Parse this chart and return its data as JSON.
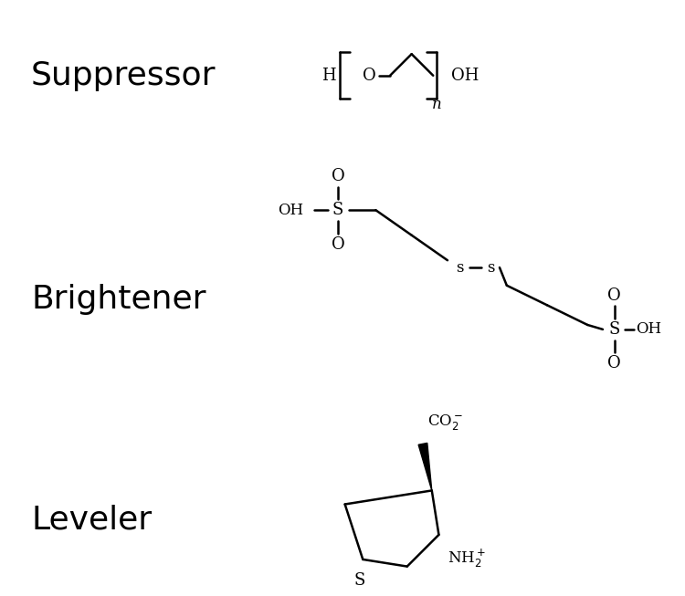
{
  "bg_color": "#ffffff",
  "line_color": "#000000",
  "label_fontsize": 26,
  "chem_fontsize": 13,
  "labels": [
    "Suppressor",
    "Brightener",
    "Leveler"
  ]
}
